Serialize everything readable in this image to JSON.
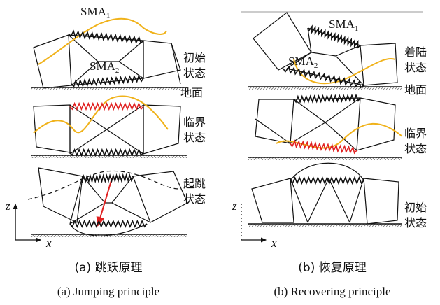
{
  "panel_a": {
    "sma1": {
      "text": "SMA",
      "sub": "1"
    },
    "sma2": {
      "text": "SMA",
      "sub": "2"
    },
    "ground": "地面",
    "states": [
      [
        "初始",
        "状态"
      ],
      [
        "临界",
        "状态"
      ],
      [
        "起跳",
        "状态"
      ]
    ],
    "axis_z": "z",
    "axis_x": "x",
    "caption_cn": "(a) 跳跃原理",
    "caption_en": "(a) Jumping principle"
  },
  "panel_b": {
    "sma1": {
      "text": "SMA",
      "sub": "1"
    },
    "sma2": {
      "text": "SMA",
      "sub": "2"
    },
    "ground": "地面",
    "states": [
      [
        "着陆",
        "状态"
      ],
      [
        "临界",
        "状态"
      ],
      [
        "初始",
        "状态"
      ]
    ],
    "axis_z": "z",
    "axis_x": "x",
    "caption_cn": "(b) 恢复原理",
    "caption_en": "(b) Recovering principle"
  }
}
